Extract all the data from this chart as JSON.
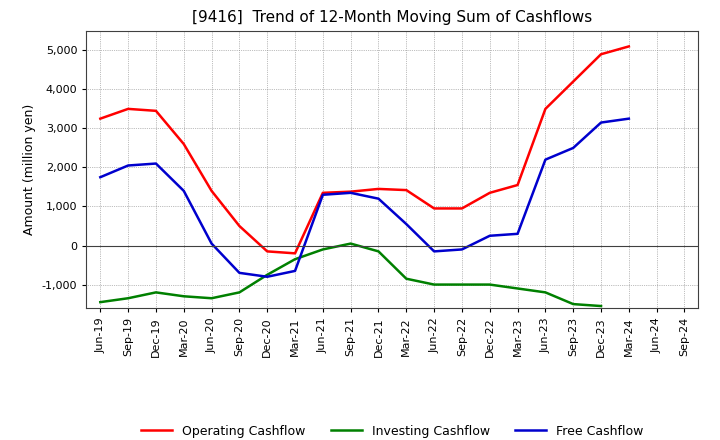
{
  "title": "[9416]  Trend of 12-Month Moving Sum of Cashflows",
  "ylabel": "Amount (million yen)",
  "ylim": [
    -1600,
    5500
  ],
  "yticks": [
    -1000,
    0,
    1000,
    2000,
    3000,
    4000,
    5000
  ],
  "x_labels": [
    "Jun-19",
    "Sep-19",
    "Dec-19",
    "Mar-20",
    "Jun-20",
    "Sep-20",
    "Dec-20",
    "Mar-21",
    "Jun-21",
    "Sep-21",
    "Dec-21",
    "Mar-22",
    "Jun-22",
    "Sep-22",
    "Dec-22",
    "Mar-23",
    "Jun-23",
    "Sep-23",
    "Dec-23",
    "Mar-24",
    "Jun-24",
    "Sep-24"
  ],
  "operating": [
    3250,
    3500,
    3450,
    2600,
    1400,
    500,
    -150,
    -200,
    1350,
    1380,
    1450,
    1420,
    950,
    950,
    1350,
    1550,
    3500,
    4200,
    4900,
    5100,
    null,
    null
  ],
  "investing": [
    -1450,
    -1350,
    -1200,
    -1300,
    -1350,
    -1200,
    -750,
    -350,
    -100,
    50,
    -150,
    -850,
    -1000,
    -1000,
    -1000,
    -1100,
    -1200,
    -1500,
    -1550,
    null,
    null,
    null
  ],
  "free": [
    1750,
    2050,
    2100,
    1400,
    50,
    -700,
    -800,
    -650,
    1300,
    1350,
    1200,
    550,
    -150,
    -100,
    250,
    300,
    2200,
    2500,
    3150,
    3250,
    null,
    null
  ],
  "operating_color": "#ff0000",
  "investing_color": "#008000",
  "free_color": "#0000cd",
  "background_color": "#ffffff",
  "plot_bg_color": "#ffffff",
  "grid_color": "#808080",
  "title_fontsize": 11,
  "label_fontsize": 9,
  "tick_fontsize": 8
}
